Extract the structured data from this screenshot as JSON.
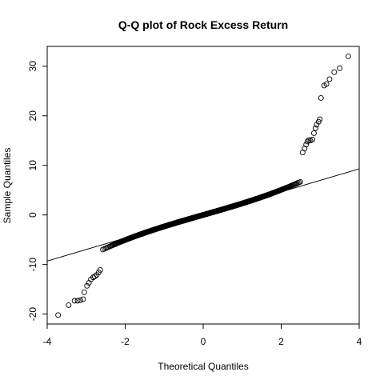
{
  "chart_data": {
    "type": "scatter",
    "title": "Q-Q plot of Rock Excess Return",
    "xlabel": "Theoretical Quantiles",
    "ylabel": "Sample Quantiles",
    "xlim": [
      -4,
      4
    ],
    "ylim": [
      -22,
      34
    ],
    "x_ticks": [
      -4,
      -2,
      0,
      2,
      4
    ],
    "y_ticks": [
      -20,
      -10,
      0,
      10,
      20,
      30
    ],
    "grid": false,
    "legend": "none",
    "reference_line": {
      "points": [
        [
          -4,
          -9.3
        ],
        [
          4,
          9.3
        ]
      ]
    },
    "density_points": 1500,
    "outlier_points": [
      {
        "x": -3.72,
        "y": -20.2
      },
      {
        "x": -3.45,
        "y": -18.2
      },
      {
        "x": -3.3,
        "y": -17.3
      },
      {
        "x": -3.22,
        "y": -17.3
      },
      {
        "x": -3.15,
        "y": -17.2
      },
      {
        "x": -3.08,
        "y": -17.0
      },
      {
        "x": -3.05,
        "y": -15.6
      },
      {
        "x": -2.98,
        "y": -14.3
      },
      {
        "x": -2.93,
        "y": -13.7
      },
      {
        "x": -2.88,
        "y": -13.0
      },
      {
        "x": -2.82,
        "y": -12.6
      },
      {
        "x": -2.78,
        "y": -12.4
      },
      {
        "x": -2.73,
        "y": -12.1
      },
      {
        "x": -2.68,
        "y": -11.6
      },
      {
        "x": -2.64,
        "y": -11.1
      },
      {
        "x": 2.55,
        "y": 12.6
      },
      {
        "x": 2.6,
        "y": 13.4
      },
      {
        "x": 2.64,
        "y": 14.2
      },
      {
        "x": 2.67,
        "y": 14.8
      },
      {
        "x": 2.71,
        "y": 15.1
      },
      {
        "x": 2.75,
        "y": 15.0
      },
      {
        "x": 2.8,
        "y": 15.2
      },
      {
        "x": 2.84,
        "y": 16.5
      },
      {
        "x": 2.88,
        "y": 17.5
      },
      {
        "x": 2.91,
        "y": 18.2
      },
      {
        "x": 2.96,
        "y": 18.8
      },
      {
        "x": 2.99,
        "y": 19.3
      },
      {
        "x": 3.02,
        "y": 23.6
      },
      {
        "x": 3.1,
        "y": 26.1
      },
      {
        "x": 3.16,
        "y": 26.4
      },
      {
        "x": 3.24,
        "y": 27.4
      },
      {
        "x": 3.36,
        "y": 28.8
      },
      {
        "x": 3.5,
        "y": 29.6
      },
      {
        "x": 3.72,
        "y": 32.0
      }
    ]
  }
}
